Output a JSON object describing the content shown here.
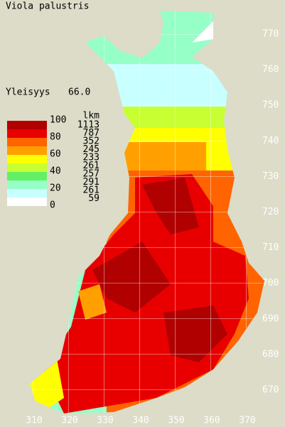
{
  "title": "Viola palustris",
  "frequency": {
    "label": "Yleisyys",
    "value": "66.0"
  },
  "legend": {
    "scale_labels": [
      "100",
      "80",
      "60",
      "40",
      "20",
      "0"
    ],
    "colors": [
      "#b00000",
      "#e80000",
      "#ff6400",
      "#ffa000",
      "#ffff00",
      "#c8ff32",
      "#64f064",
      "#96ffc8",
      "#c8ffff",
      "#ffffff"
    ],
    "count_header": "lkm",
    "counts": [
      1113,
      787,
      352,
      245,
      233,
      261,
      257,
      291,
      261,
      59
    ]
  },
  "y_labels": [
    770,
    760,
    750,
    740,
    730,
    720,
    710,
    700,
    690,
    680,
    670
  ],
  "x_labels": [
    310,
    320,
    330,
    340,
    350,
    360,
    370
  ]
}
